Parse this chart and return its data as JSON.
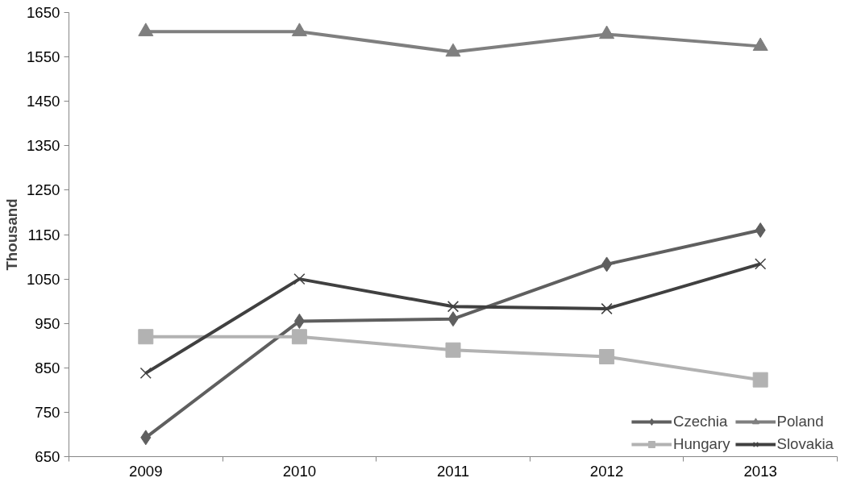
{
  "chart_data": {
    "type": "line",
    "ylabel": "Thousand",
    "categories": [
      "2009",
      "2010",
      "2011",
      "2012",
      "2013"
    ],
    "ylim": [
      650,
      1650
    ],
    "yticks": [
      650,
      750,
      850,
      950,
      1050,
      1150,
      1250,
      1350,
      1450,
      1550,
      1650
    ],
    "grid": false,
    "legend": "bottom right",
    "series": [
      {
        "name": "Czechia",
        "color": "#5f5f5f",
        "marker": "diamond",
        "values": [
          693,
          955,
          960,
          1083,
          1160
        ]
      },
      {
        "name": "Hungary",
        "color": "#b2b2b2",
        "marker": "square",
        "values": [
          920,
          920,
          890,
          875,
          823
        ]
      },
      {
        "name": "Poland",
        "color": "#7f7f7f",
        "marker": "triangle",
        "values": [
          1607,
          1607,
          1561,
          1601,
          1574
        ]
      },
      {
        "name": "Slovakia",
        "color": "#404040",
        "marker": "cross",
        "values": [
          838,
          1050,
          988,
          983,
          1084
        ]
      }
    ]
  }
}
